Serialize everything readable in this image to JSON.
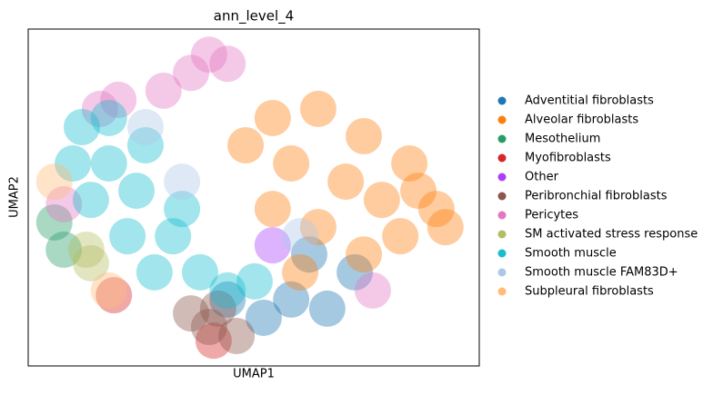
{
  "chart_data": {
    "type": "scatter",
    "title": "ann_level_4",
    "x_label": "UMAP1",
    "y_label": "UMAP2",
    "xlim": [
      0,
      100
    ],
    "ylim": [
      0,
      100
    ],
    "series": [
      {
        "name": "Adventitial fibroblasts",
        "color": "#1f77b4",
        "x": [
          66.3,
          58.3,
          52.2,
          44.2,
          62.3,
          72.4
        ],
        "y": [
          17.0,
          19.7,
          14.3,
          19.7,
          33.1,
          27.8
        ]
      },
      {
        "name": "Alveolar fibroblasts",
        "color": "#ff7f0e",
        "x": [
          54.2,
          64.3,
          74.4,
          84.5,
          90.5,
          92.5,
          82.5,
          70.4,
          58.3,
          48.2,
          78.4,
          64.3,
          54.2,
          86.5,
          74.4,
          60.3
        ],
        "y": [
          73.6,
          76.3,
          68.2,
          60.1,
          46.6,
          41.2,
          38.5,
          54.7,
          60.1,
          65.5,
          49.3,
          41.2,
          46.6,
          52.0,
          33.1,
          27.8
        ]
      },
      {
        "name": "Mesothelium",
        "color": "#279e68",
        "x": [
          5.8,
          7.9
        ],
        "y": [
          42.6,
          34.5
        ]
      },
      {
        "name": "Myofibroblasts",
        "color": "#d62728",
        "x": [
          41.1,
          19.0
        ],
        "y": [
          7.5,
          21.0
        ]
      },
      {
        "name": "Other",
        "color": "#aa40fc",
        "x": [
          54.2
        ],
        "y": [
          35.8
        ]
      },
      {
        "name": "Peribronchial fibroblasts",
        "color": "#8c564b",
        "x": [
          40.1,
          42.1,
          36.1,
          46.2
        ],
        "y": [
          11.6,
          17.0,
          15.6,
          8.9
        ]
      },
      {
        "name": "Pericytes",
        "color": "#e377c2",
        "x": [
          40.1,
          44.2,
          36.1,
          30.0,
          20.0,
          15.9,
          7.9,
          76.4
        ],
        "y": [
          92.4,
          89.7,
          87.0,
          81.7,
          79.0,
          76.3,
          48.0,
          22.4
        ]
      },
      {
        "name": "SM activated stress response",
        "color": "#b5bd61",
        "x": [
          12.9,
          13.9
        ],
        "y": [
          34.5,
          30.5
        ]
      },
      {
        "name": "Smooth muscle",
        "color": "#17becf",
        "x": [
          11.9,
          17.9,
          24.0,
          13.9,
          22.0,
          32.1,
          38.1,
          28.0,
          44.2,
          50.2,
          34.1,
          17.9,
          26.0,
          9.9
        ],
        "y": [
          70.9,
          60.1,
          52.0,
          49.3,
          38.5,
          38.5,
          27.8,
          27.8,
          22.4,
          25.1,
          46.6,
          73.6,
          65.5,
          60.1
        ]
      },
      {
        "name": "Smooth muscle FAM83D+",
        "color": "#aec7e8",
        "x": [
          34.1,
          60.3,
          26.0
        ],
        "y": [
          54.7,
          38.5,
          70.9
        ]
      },
      {
        "name": "Subpleural fibroblasts",
        "color": "#ffbb78",
        "x": [
          5.8,
          17.9
        ],
        "y": [
          54.7,
          22.4
        ]
      }
    ]
  }
}
